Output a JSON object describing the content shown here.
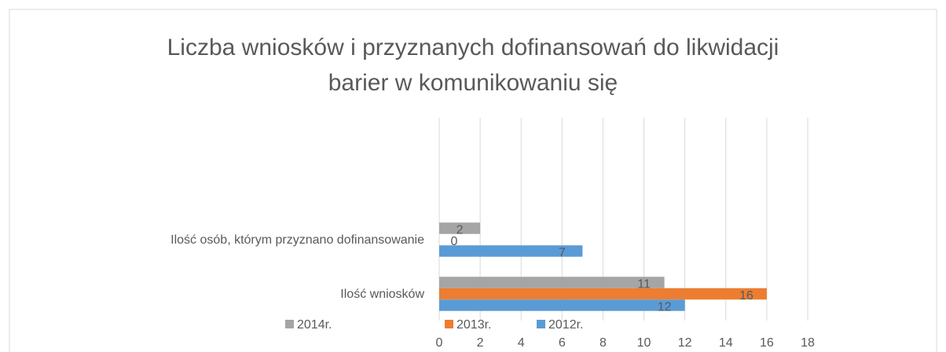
{
  "chart_data": {
    "type": "hbar",
    "title": [
      "Liczba wniosków i przyznanych dofinansowań do likwidacji",
      "barier w komunikowaniu się"
    ],
    "categories": [
      "Ilość wniosków",
      "Ilość osób, którym przyznano dofinansowanie"
    ],
    "series": [
      {
        "name": "2014r.",
        "color": "#a5a5a5",
        "values": [
          11,
          2
        ]
      },
      {
        "name": "2013r.",
        "color": "#ed7d31",
        "values": [
          16,
          0
        ]
      },
      {
        "name": "2012r.",
        "color": "#5b9bd5",
        "values": [
          12,
          7
        ]
      }
    ],
    "xlim": [
      0,
      18
    ],
    "xticks": [
      0,
      2,
      4,
      6,
      8,
      10,
      12,
      14,
      16,
      18
    ],
    "grid": true,
    "legend": "bottom"
  }
}
